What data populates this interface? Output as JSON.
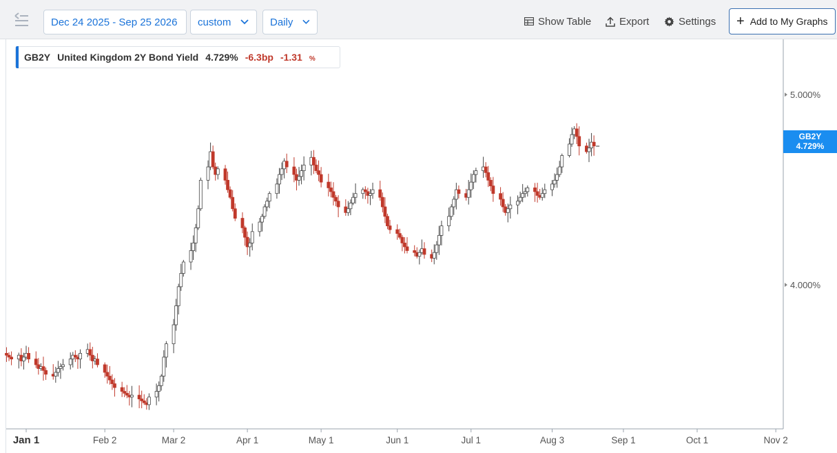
{
  "toolbar": {
    "date_range": "Dec 24 2025 - Sep 25 2026",
    "range_select": "custom",
    "frequency": "Daily",
    "show_table": "Show Table",
    "export": "Export",
    "settings": "Settings",
    "add_graph": "Add to My Graphs",
    "icons": [
      "menu-icon",
      "chevron-down-icon",
      "table-icon",
      "export-icon",
      "gear-icon",
      "plus-icon"
    ]
  },
  "legend": {
    "symbol": "GB2Y",
    "name": "United Kingdom 2Y Bond Yield",
    "value": "4.729%",
    "change": "-6.3bp",
    "change_pct": "-1.31",
    "pct_sign": "%"
  },
  "price_tag": {
    "symbol": "GB2Y",
    "value": "4.729%"
  },
  "colors": {
    "accent": "#1a73d9",
    "tag": "#1a8df0",
    "up": "#444444",
    "down": "#c0392b"
  },
  "chart_data": {
    "type": "candlestick",
    "ylim": [
      3.25,
      5.28
    ],
    "yticks": [
      {
        "v": 5.0,
        "label": "5.000%"
      },
      {
        "v": 4.0,
        "label": "4.000%"
      }
    ],
    "xticks": [
      {
        "date": "2026-01-01",
        "label": "Jan 1"
      },
      {
        "date": "2026-02-02",
        "label": "Feb 2"
      },
      {
        "date": "2026-03-02",
        "label": "Mar 2"
      },
      {
        "date": "2026-04-01",
        "label": "Apr 1"
      },
      {
        "date": "2026-05-01",
        "label": "May 1"
      },
      {
        "date": "2026-06-01",
        "label": "Jun 1"
      },
      {
        "date": "2026-07-01",
        "label": "Jul 1"
      },
      {
        "date": "2026-08-03",
        "label": "Aug 3"
      },
      {
        "date": "2026-09-01",
        "label": "Sep 1"
      },
      {
        "date": "2026-10-01",
        "label": "Oct 1"
      },
      {
        "date": "2026-11-02",
        "label": "Nov 2"
      }
    ],
    "last_value": 4.729,
    "close_series": {
      "start_date": "2025-12-24",
      "values": [
        3.63,
        3.62,
        3.61,
        3.63,
        3.6,
        3.62,
        3.64,
        3.61,
        3.58,
        3.56,
        3.57,
        3.55,
        3.53,
        3.52,
        3.54,
        3.56,
        3.57,
        3.58,
        3.61,
        3.63,
        3.62,
        3.61,
        3.64,
        3.66,
        3.63,
        3.6,
        3.61,
        3.58,
        3.54,
        3.52,
        3.5,
        3.48,
        3.46,
        3.44,
        3.43,
        3.42,
        3.41,
        3.42,
        3.4,
        3.39,
        3.38,
        3.37,
        3.41,
        3.44,
        3.47,
        3.52,
        3.62,
        3.69,
        3.79,
        3.89,
        3.99,
        4.06,
        4.12,
        4.18,
        4.22,
        4.3,
        4.4,
        4.55,
        4.62,
        4.7,
        4.62,
        4.58,
        4.61,
        4.55,
        4.5,
        4.46,
        4.4,
        4.35,
        4.3,
        4.25,
        4.2,
        4.22,
        4.28,
        4.33,
        4.36,
        4.41,
        4.44,
        4.48,
        4.53,
        4.58,
        4.61,
        4.65,
        4.62,
        4.58,
        4.55,
        4.57,
        4.6,
        4.63,
        4.67,
        4.63,
        4.6,
        4.58,
        4.54,
        4.51,
        4.49,
        4.46,
        4.44,
        4.41,
        4.38,
        4.4,
        4.43,
        4.46,
        4.48,
        4.5,
        4.49,
        4.47,
        4.48,
        4.5,
        4.46,
        4.41,
        4.36,
        4.31,
        4.29,
        4.27,
        4.25,
        4.22,
        4.2,
        4.18,
        4.17,
        4.15,
        4.17,
        4.19,
        4.16,
        4.14,
        4.17,
        4.21,
        4.26,
        4.31,
        4.36,
        4.41,
        4.45,
        4.5,
        4.48,
        4.46,
        4.5,
        4.54,
        4.58,
        4.6,
        4.62,
        4.59,
        4.55,
        4.52,
        4.48,
        4.45,
        4.41,
        4.38,
        4.4,
        4.42,
        4.44,
        4.46,
        4.48,
        4.49,
        4.51,
        4.49,
        4.47,
        4.46,
        4.48,
        4.5,
        4.53,
        4.55,
        4.58,
        4.62,
        4.68,
        4.74,
        4.79,
        4.82,
        4.78,
        4.73,
        4.7,
        4.72,
        4.75,
        4.73
      ]
    }
  }
}
